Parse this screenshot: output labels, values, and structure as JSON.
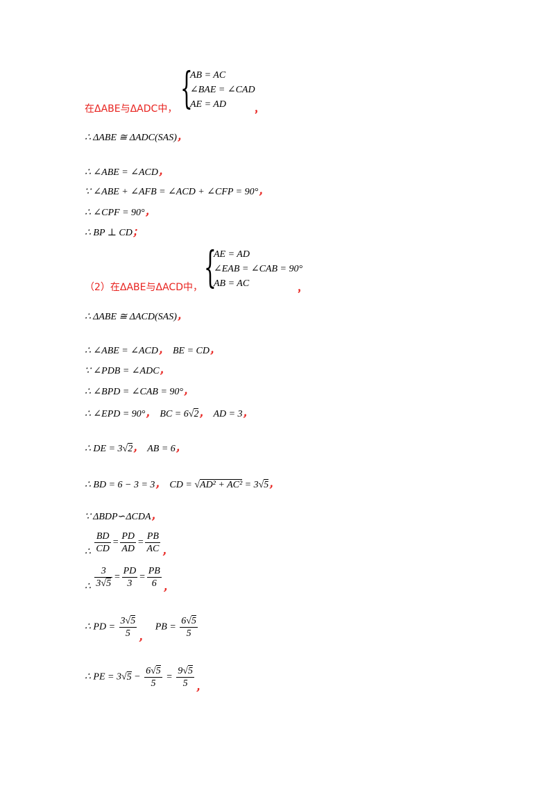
{
  "sys1": {
    "lines": [
      "AB = AC",
      "∠BAE = ∠CAD",
      "AE = AD"
    ]
  },
  "l1": {
    "label": "在ΔABE与ΔADC中，",
    "comma": "，"
  },
  "l2": {
    "text": "∴ ΔABE ≅ ΔADC(SAS)",
    "comma": "，"
  },
  "l3": {
    "text": "∴ ∠ABE = ∠ACD",
    "comma": "，"
  },
  "l4": {
    "text": "∵ ∠ABE + ∠AFB = ∠ACD + ∠CFP = 90°",
    "comma": "，"
  },
  "l5": {
    "text": "∴ ∠CPF = 90°",
    "comma": "，"
  },
  "l6": {
    "text": "∴ BP ⊥ CD",
    "comma": "；"
  },
  "sys2": {
    "lines": [
      "AE = AD",
      "∠EAB = ∠CAB = 90°",
      "AB = AC"
    ]
  },
  "l7": {
    "label": "（2）在ΔABE与ΔACD中，",
    "comma": "，"
  },
  "l8": {
    "text": "∴ ΔABE ≅ ΔACD(SAS)",
    "comma": "，"
  },
  "l9": {
    "a": "∴ ∠ABE = ∠ACD",
    "b": "BE = CD",
    "comma": "，"
  },
  "l10": {
    "text": "∵ ∠PDB = ∠ADC",
    "comma": "，"
  },
  "l11": {
    "text": "∴ ∠BPD = ∠CAB = 90°",
    "comma": "，"
  },
  "l12": {
    "a": "∴ ∠EPD = 90°",
    "b1": "BC = 6",
    "b2": "2",
    "c": "AD = 3",
    "comma": "，"
  },
  "l13": {
    "a1": "∴ DE = 3",
    "a2": "2",
    "b": "AB = 6",
    "comma": "，"
  },
  "l14": {
    "a": "∴ BD = 6 − 3 = 3",
    "b1": "CD = ",
    "b2": "AD² + AC²",
    "b3": " = 3",
    "b4": "5",
    "comma": "，"
  },
  "l15": {
    "text": "∵ ΔBDP∽ΔCDA",
    "comma": "，"
  },
  "l16": {
    "pre": "∴",
    "f1n": "BD",
    "f1d": "CD",
    "f2n": "PD",
    "f2d": "AD",
    "f3n": "PB",
    "f3d": "AC",
    "comma": "，"
  },
  "l17": {
    "pre": "∴",
    "f1n": "3",
    "f1d1": "3",
    "f1d2": "5",
    "f2n": "PD",
    "f2d": "3",
    "f3n": "PB",
    "f3d": "6",
    "comma": "，"
  },
  "l18": {
    "pre": "∴ PD =",
    "f1n1": "3",
    "f1n2": "5",
    "f1d": "5",
    "mid": "PB =",
    "f2n1": "6",
    "f2n2": "5",
    "f2d": "5",
    "comma": "，"
  },
  "l19": {
    "pre": "∴ PE = 3",
    "pre2": "5",
    "minus": "−",
    "f1n1": "6",
    "f1n2": "5",
    "f1d": "5",
    "eq": "=",
    "f2n1": "9",
    "f2n2": "5",
    "f2d": "5",
    "comma": "，"
  }
}
